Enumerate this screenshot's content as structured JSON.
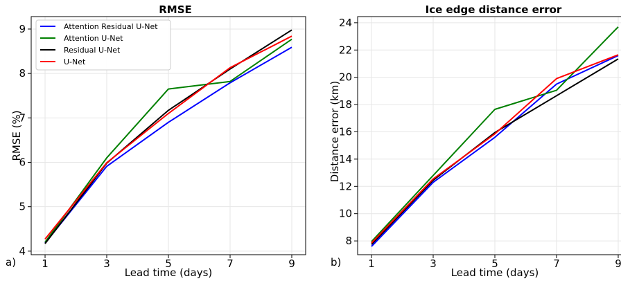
{
  "chart_data": [
    {
      "type": "line",
      "panel_label": "a)",
      "title": "RMSE",
      "xlabel": "Lead time (days)",
      "ylabel": "RMSE (%)",
      "x": [
        1,
        3,
        5,
        7,
        9
      ],
      "xlim": [
        0.55,
        9.45
      ],
      "ylim": [
        3.92,
        9.28
      ],
      "xticks": [
        1,
        3,
        5,
        7,
        9
      ],
      "yticks": [
        4,
        5,
        6,
        7,
        8,
        9
      ],
      "grid": true,
      "legend": "top-left",
      "series": [
        {
          "name": "Attention Residual U-Net",
          "color": "#0000ff",
          "values": [
            4.18,
            5.91,
            6.9,
            7.79,
            8.59
          ]
        },
        {
          "name": "Attention U-Net",
          "color": "#008000",
          "values": [
            4.2,
            6.1,
            7.65,
            7.82,
            8.77
          ]
        },
        {
          "name": "Residual U-Net",
          "color": "#000000",
          "values": [
            4.17,
            5.98,
            7.17,
            8.1,
            8.98
          ]
        },
        {
          "name": "U-Net",
          "color": "#ff0000",
          "values": [
            4.27,
            5.99,
            7.1,
            8.13,
            8.84
          ]
        }
      ]
    },
    {
      "type": "line",
      "panel_label": "b)",
      "title": "Ice edge distance error",
      "xlabel": "Lead time (days)",
      "ylabel": "Distance error (km)",
      "x": [
        1,
        3,
        5,
        7,
        9
      ],
      "xlim": [
        0.55,
        9.45
      ],
      "ylim": [
        6.99,
        24.45
      ],
      "xticks": [
        1,
        3,
        5,
        7,
        9
      ],
      "yticks": [
        8,
        10,
        12,
        14,
        16,
        18,
        20,
        22,
        24
      ],
      "grid": true,
      "series": [
        {
          "name": "Attention Residual U-Net",
          "color": "#0000ff",
          "values": [
            7.6,
            12.3,
            15.6,
            19.5,
            21.6
          ]
        },
        {
          "name": "Attention U-Net",
          "color": "#008000",
          "values": [
            7.95,
            12.8,
            17.65,
            19.05,
            23.7
          ]
        },
        {
          "name": "Residual U-Net",
          "color": "#000000",
          "values": [
            7.75,
            12.45,
            15.95,
            18.65,
            21.35
          ]
        },
        {
          "name": "U-Net",
          "color": "#ff0000",
          "values": [
            7.85,
            12.55,
            15.85,
            19.9,
            21.65
          ]
        }
      ]
    }
  ]
}
